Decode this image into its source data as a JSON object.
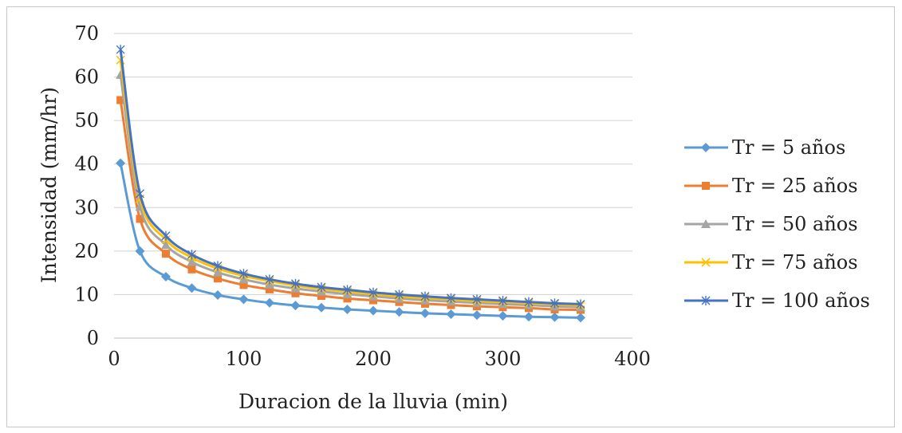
{
  "chart_data": {
    "type": "line",
    "title": "",
    "xlabel": "Duracion de la lluvia (min)",
    "ylabel": "Intensidad (mm/hr)",
    "xlim": [
      0,
      400
    ],
    "ylim": [
      0,
      70
    ],
    "x_ticks": [
      "0",
      "100",
      "200",
      "300",
      "400"
    ],
    "y_ticks": [
      "0",
      "10",
      "20",
      "30",
      "40",
      "50",
      "60",
      "70"
    ],
    "grid": "horizontal",
    "legend_position": "right",
    "x": [
      5,
      20,
      40,
      60,
      80,
      100,
      120,
      140,
      160,
      180,
      200,
      220,
      240,
      260,
      280,
      300,
      320,
      340,
      360
    ],
    "series": [
      {
        "name": "Tr = 5 años",
        "color": "#5b9bd5",
        "marker": "diamond",
        "values": [
          40.2,
          20.0,
          14.1,
          11.5,
          9.9,
          8.9,
          8.1,
          7.5,
          7.0,
          6.6,
          6.3,
          6.0,
          5.7,
          5.5,
          5.3,
          5.1,
          4.9,
          4.8,
          4.7
        ]
      },
      {
        "name": "Tr = 25 años",
        "color": "#ed7d31",
        "marker": "square",
        "values": [
          54.7,
          27.4,
          19.4,
          15.8,
          13.7,
          12.2,
          11.2,
          10.3,
          9.7,
          9.1,
          8.7,
          8.3,
          7.9,
          7.6,
          7.3,
          7.1,
          6.9,
          6.6,
          6.5
        ]
      },
      {
        "name": "Tr = 50 años",
        "color": "#a5a5a5",
        "marker": "triangle",
        "values": [
          60.5,
          30.2,
          21.4,
          17.5,
          15.1,
          13.5,
          12.3,
          11.4,
          10.7,
          10.1,
          9.6,
          9.1,
          8.7,
          8.4,
          8.1,
          7.8,
          7.6,
          7.3,
          7.1
        ]
      },
      {
        "name": "Tr = 75 años",
        "color": "#ffc000",
        "marker": "x",
        "values": [
          63.9,
          32.0,
          22.6,
          18.5,
          16.0,
          14.3,
          13.1,
          12.1,
          11.3,
          10.7,
          10.1,
          9.6,
          9.2,
          8.9,
          8.5,
          8.3,
          8.0,
          7.8,
          7.5
        ]
      },
      {
        "name": "Tr = 100 años",
        "color": "#4472c4",
        "marker": "star",
        "values": [
          66.3,
          33.2,
          23.5,
          19.2,
          16.6,
          14.8,
          13.5,
          12.5,
          11.7,
          11.1,
          10.5,
          10.0,
          9.6,
          9.2,
          8.9,
          8.6,
          8.3,
          8.0,
          7.8
        ]
      }
    ]
  }
}
